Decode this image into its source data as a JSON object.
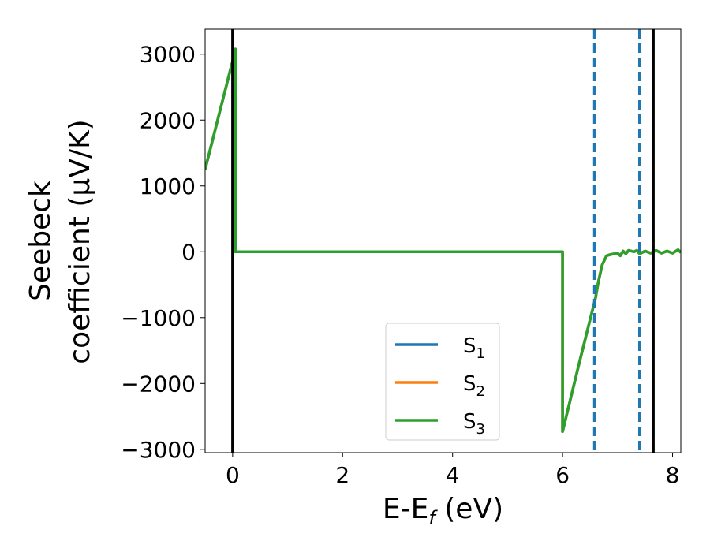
{
  "chart_data": {
    "type": "line",
    "xlabel": "E-E",
    "xlabel_sub": "f",
    "xlabel_unit": " (eV)",
    "ylabel_line1": "Seebeck",
    "ylabel_line2": "coefficient  (μV/K)",
    "xlim": [
      -0.5,
      8.15
    ],
    "ylim": [
      -3050,
      3380
    ],
    "xticks": [
      0,
      2,
      4,
      6,
      8
    ],
    "xtick_labels": [
      "0",
      "2",
      "4",
      "6",
      "8"
    ],
    "yticks": [
      -3000,
      -2000,
      -1000,
      0,
      1000,
      2000,
      3000
    ],
    "ytick_labels": [
      "−3000",
      "−2000",
      "−1000",
      "0",
      "1000",
      "2000",
      "3000"
    ],
    "grid": false,
    "legend_position": "lower-center",
    "vlines_solid": [
      0.0,
      7.65
    ],
    "vlines_dashed": [
      6.58,
      7.4
    ],
    "vline_solid_color": "#000000",
    "vline_dashed_color": "#1f77b4",
    "series": [
      {
        "name": "S",
        "sub": "1",
        "color": "#1f77b4",
        "x": [
          -0.5,
          0.0,
          0.05,
          0.05,
          6.0,
          6.0,
          6.3,
          6.6,
          6.65,
          6.72,
          6.8,
          6.88,
          6.95,
          7.0,
          7.05,
          7.1,
          7.15,
          7.2,
          7.3,
          7.35,
          7.4,
          7.5,
          7.6,
          7.7,
          7.8,
          7.9,
          8.0,
          8.1,
          8.15
        ],
        "y": [
          1250,
          2900,
          3080,
          0,
          0,
          -2730,
          -1700,
          -700,
          -460,
          -200,
          -60,
          -40,
          -30,
          -20,
          -60,
          10,
          -30,
          20,
          0,
          20,
          -30,
          10,
          -20,
          20,
          -20,
          10,
          -20,
          30,
          -10
        ]
      },
      {
        "name": "S",
        "sub": "2",
        "color": "#ff7f0e",
        "x": [
          -0.5,
          0.0,
          0.05,
          0.05,
          6.0,
          6.0,
          6.3,
          6.6,
          6.65,
          6.72,
          6.8,
          6.88,
          6.95,
          7.0,
          7.05,
          7.1,
          7.15,
          7.2,
          7.3,
          7.35,
          7.4,
          7.5,
          7.6,
          7.7,
          7.8,
          7.9,
          8.0,
          8.1,
          8.15
        ],
        "y": [
          1250,
          2900,
          3080,
          0,
          0,
          -2730,
          -1700,
          -700,
          -460,
          -200,
          -60,
          -40,
          -30,
          -20,
          -60,
          10,
          -30,
          20,
          0,
          20,
          -30,
          10,
          -20,
          20,
          -20,
          10,
          -20,
          30,
          -10
        ]
      },
      {
        "name": "S",
        "sub": "3",
        "color": "#2ca02c",
        "x": [
          -0.5,
          0.0,
          0.05,
          0.05,
          6.0,
          6.0,
          6.3,
          6.6,
          6.65,
          6.72,
          6.8,
          6.88,
          6.95,
          7.0,
          7.05,
          7.1,
          7.15,
          7.2,
          7.3,
          7.35,
          7.4,
          7.5,
          7.6,
          7.7,
          7.8,
          7.9,
          8.0,
          8.1,
          8.15
        ],
        "y": [
          1250,
          2900,
          3080,
          0,
          0,
          -2730,
          -1700,
          -700,
          -460,
          -200,
          -60,
          -40,
          -30,
          -20,
          -60,
          10,
          -30,
          20,
          0,
          20,
          -30,
          10,
          -20,
          20,
          -20,
          10,
          -20,
          30,
          -10
        ]
      }
    ]
  }
}
